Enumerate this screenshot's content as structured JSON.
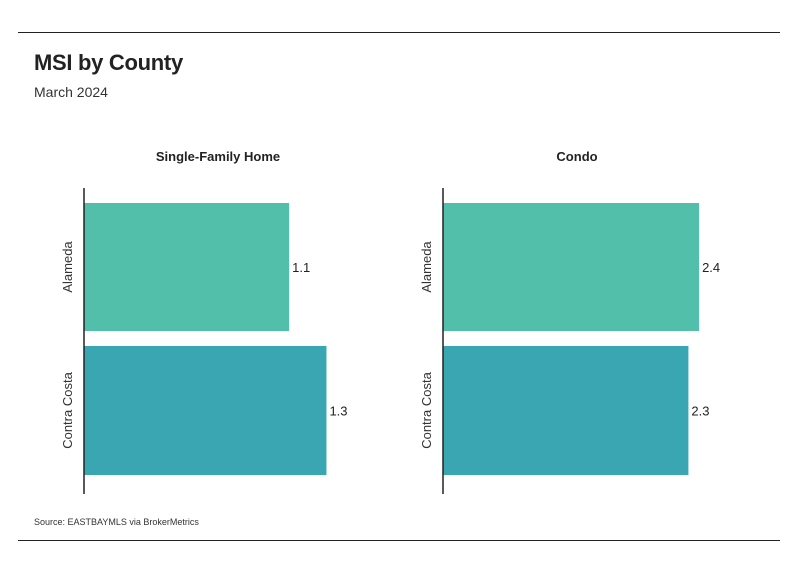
{
  "header": {
    "title": "MSI by County",
    "subtitle": "March 2024"
  },
  "footer": {
    "source": "Source:  EASTBAYMLS via BrokerMetrics"
  },
  "colors": {
    "alameda": "#52bfab",
    "contra_costa": "#3aa6b2",
    "axis": "#222222",
    "rule": "#222222"
  },
  "chart_data": [
    {
      "type": "bar",
      "orientation": "horizontal",
      "title": "Single-Family Home",
      "categories": [
        "Alameda",
        "Contra Costa"
      ],
      "values": [
        1.1,
        1.3
      ],
      "value_labels": [
        "1.1",
        "1.3"
      ],
      "xlim": [
        0,
        2.6
      ],
      "grid": false,
      "legend": "none"
    },
    {
      "type": "bar",
      "orientation": "horizontal",
      "title": "Condo",
      "categories": [
        "Alameda",
        "Contra Costa"
      ],
      "values": [
        2.4,
        2.3
      ],
      "value_labels": [
        "2.4",
        "2.3"
      ],
      "xlim": [
        0,
        2.6
      ],
      "grid": false,
      "legend": "none"
    }
  ]
}
